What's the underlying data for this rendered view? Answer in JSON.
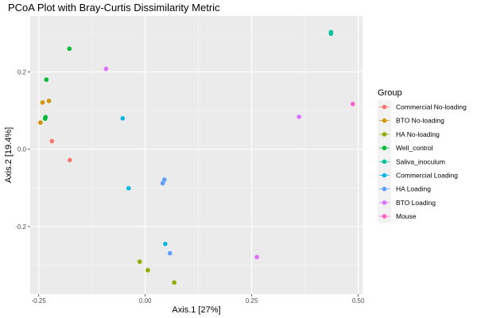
{
  "chart_data": {
    "type": "scatter",
    "title": "PCoA Plot with Bray-Curtis Dissimilarity Metric",
    "xlabel": "Axis.1   [27%]",
    "ylabel": "Axis.2   [19.4%]",
    "xlim": [
      -0.27,
      0.51
    ],
    "ylim": [
      -0.375,
      0.345
    ],
    "x_ticks": [
      -0.25,
      0.0,
      0.25,
      0.5
    ],
    "x_tick_labels": [
      "-0.25",
      "0.00",
      "0.25",
      "0.50"
    ],
    "y_ticks": [
      -0.2,
      0.0,
      0.2
    ],
    "y_tick_labels": [
      "-0.2",
      "0.0",
      "0.2"
    ],
    "grid": true,
    "legend": {
      "title": "Group",
      "position": "right"
    },
    "series": [
      {
        "name": "Commercial No-loading",
        "color": "#F8766D",
        "points": [
          {
            "x": -0.219,
            "y": 0.021
          },
          {
            "x": -0.177,
            "y": -0.028
          }
        ]
      },
      {
        "name": "BTO No-loading",
        "color": "#D39200",
        "points": [
          {
            "x": -0.226,
            "y": 0.125
          },
          {
            "x": -0.241,
            "y": 0.121
          },
          {
            "x": -0.246,
            "y": 0.069
          }
        ]
      },
      {
        "name": "HA No-loading",
        "color": "#93AA00",
        "points": [
          {
            "x": -0.013,
            "y": -0.291
          },
          {
            "x": 0.006,
            "y": -0.313
          },
          {
            "x": 0.068,
            "y": -0.345
          }
        ]
      },
      {
        "name": "Well_control",
        "color": "#00BA38",
        "points": [
          {
            "x": -0.178,
            "y": 0.26
          },
          {
            "x": -0.232,
            "y": 0.18
          },
          {
            "x": -0.234,
            "y": 0.083
          },
          {
            "x": -0.235,
            "y": 0.079
          }
        ]
      },
      {
        "name": "Saliva_inoculum",
        "color": "#00C19F",
        "points": [
          {
            "x": 0.436,
            "y": 0.303
          },
          {
            "x": 0.436,
            "y": 0.299
          }
        ]
      },
      {
        "name": "Commercial Loading",
        "color": "#00B9E3",
        "points": [
          {
            "x": -0.053,
            "y": 0.08
          },
          {
            "x": -0.039,
            "y": -0.101
          },
          {
            "x": 0.047,
            "y": -0.245
          }
        ]
      },
      {
        "name": "HA Loading",
        "color": "#619CFF",
        "points": [
          {
            "x": 0.045,
            "y": -0.079
          },
          {
            "x": 0.041,
            "y": -0.088
          },
          {
            "x": 0.058,
            "y": -0.269
          }
        ]
      },
      {
        "name": "BTO Loading",
        "color": "#DB72FB",
        "points": [
          {
            "x": -0.092,
            "y": 0.208
          },
          {
            "x": 0.361,
            "y": 0.084
          },
          {
            "x": 0.262,
            "y": -0.279
          }
        ]
      },
      {
        "name": "Mouse",
        "color": "#FF61C3",
        "points": [
          {
            "x": 0.487,
            "y": 0.117
          }
        ]
      }
    ]
  }
}
